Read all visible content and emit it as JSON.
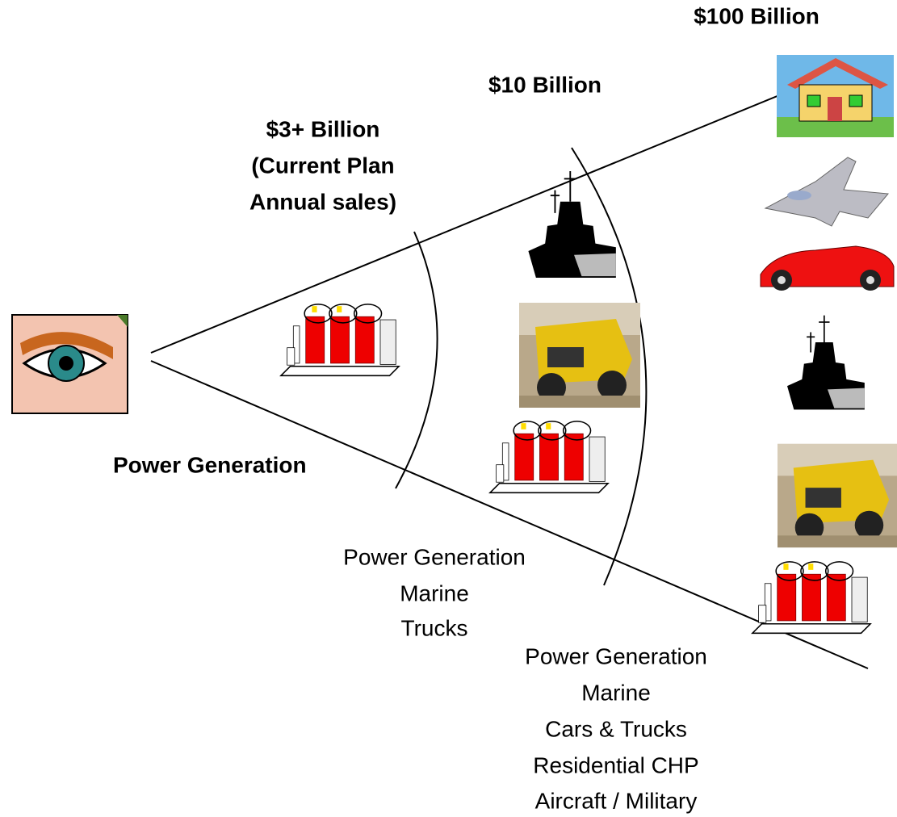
{
  "markets": [
    {
      "size": "$3+ Billion",
      "note": [
        "(Current Plan",
        "Annual sales)"
      ],
      "applications": [
        "Power Generation"
      ]
    },
    {
      "size": "$10 Billion",
      "applications": [
        "Power Generation",
        "Marine",
        "Trucks"
      ]
    },
    {
      "size": "$100 Billion",
      "applications": [
        "Power Generation",
        "Marine",
        "Cars & Trucks",
        "Residential CHP",
        "Aircraft / Military"
      ]
    }
  ]
}
